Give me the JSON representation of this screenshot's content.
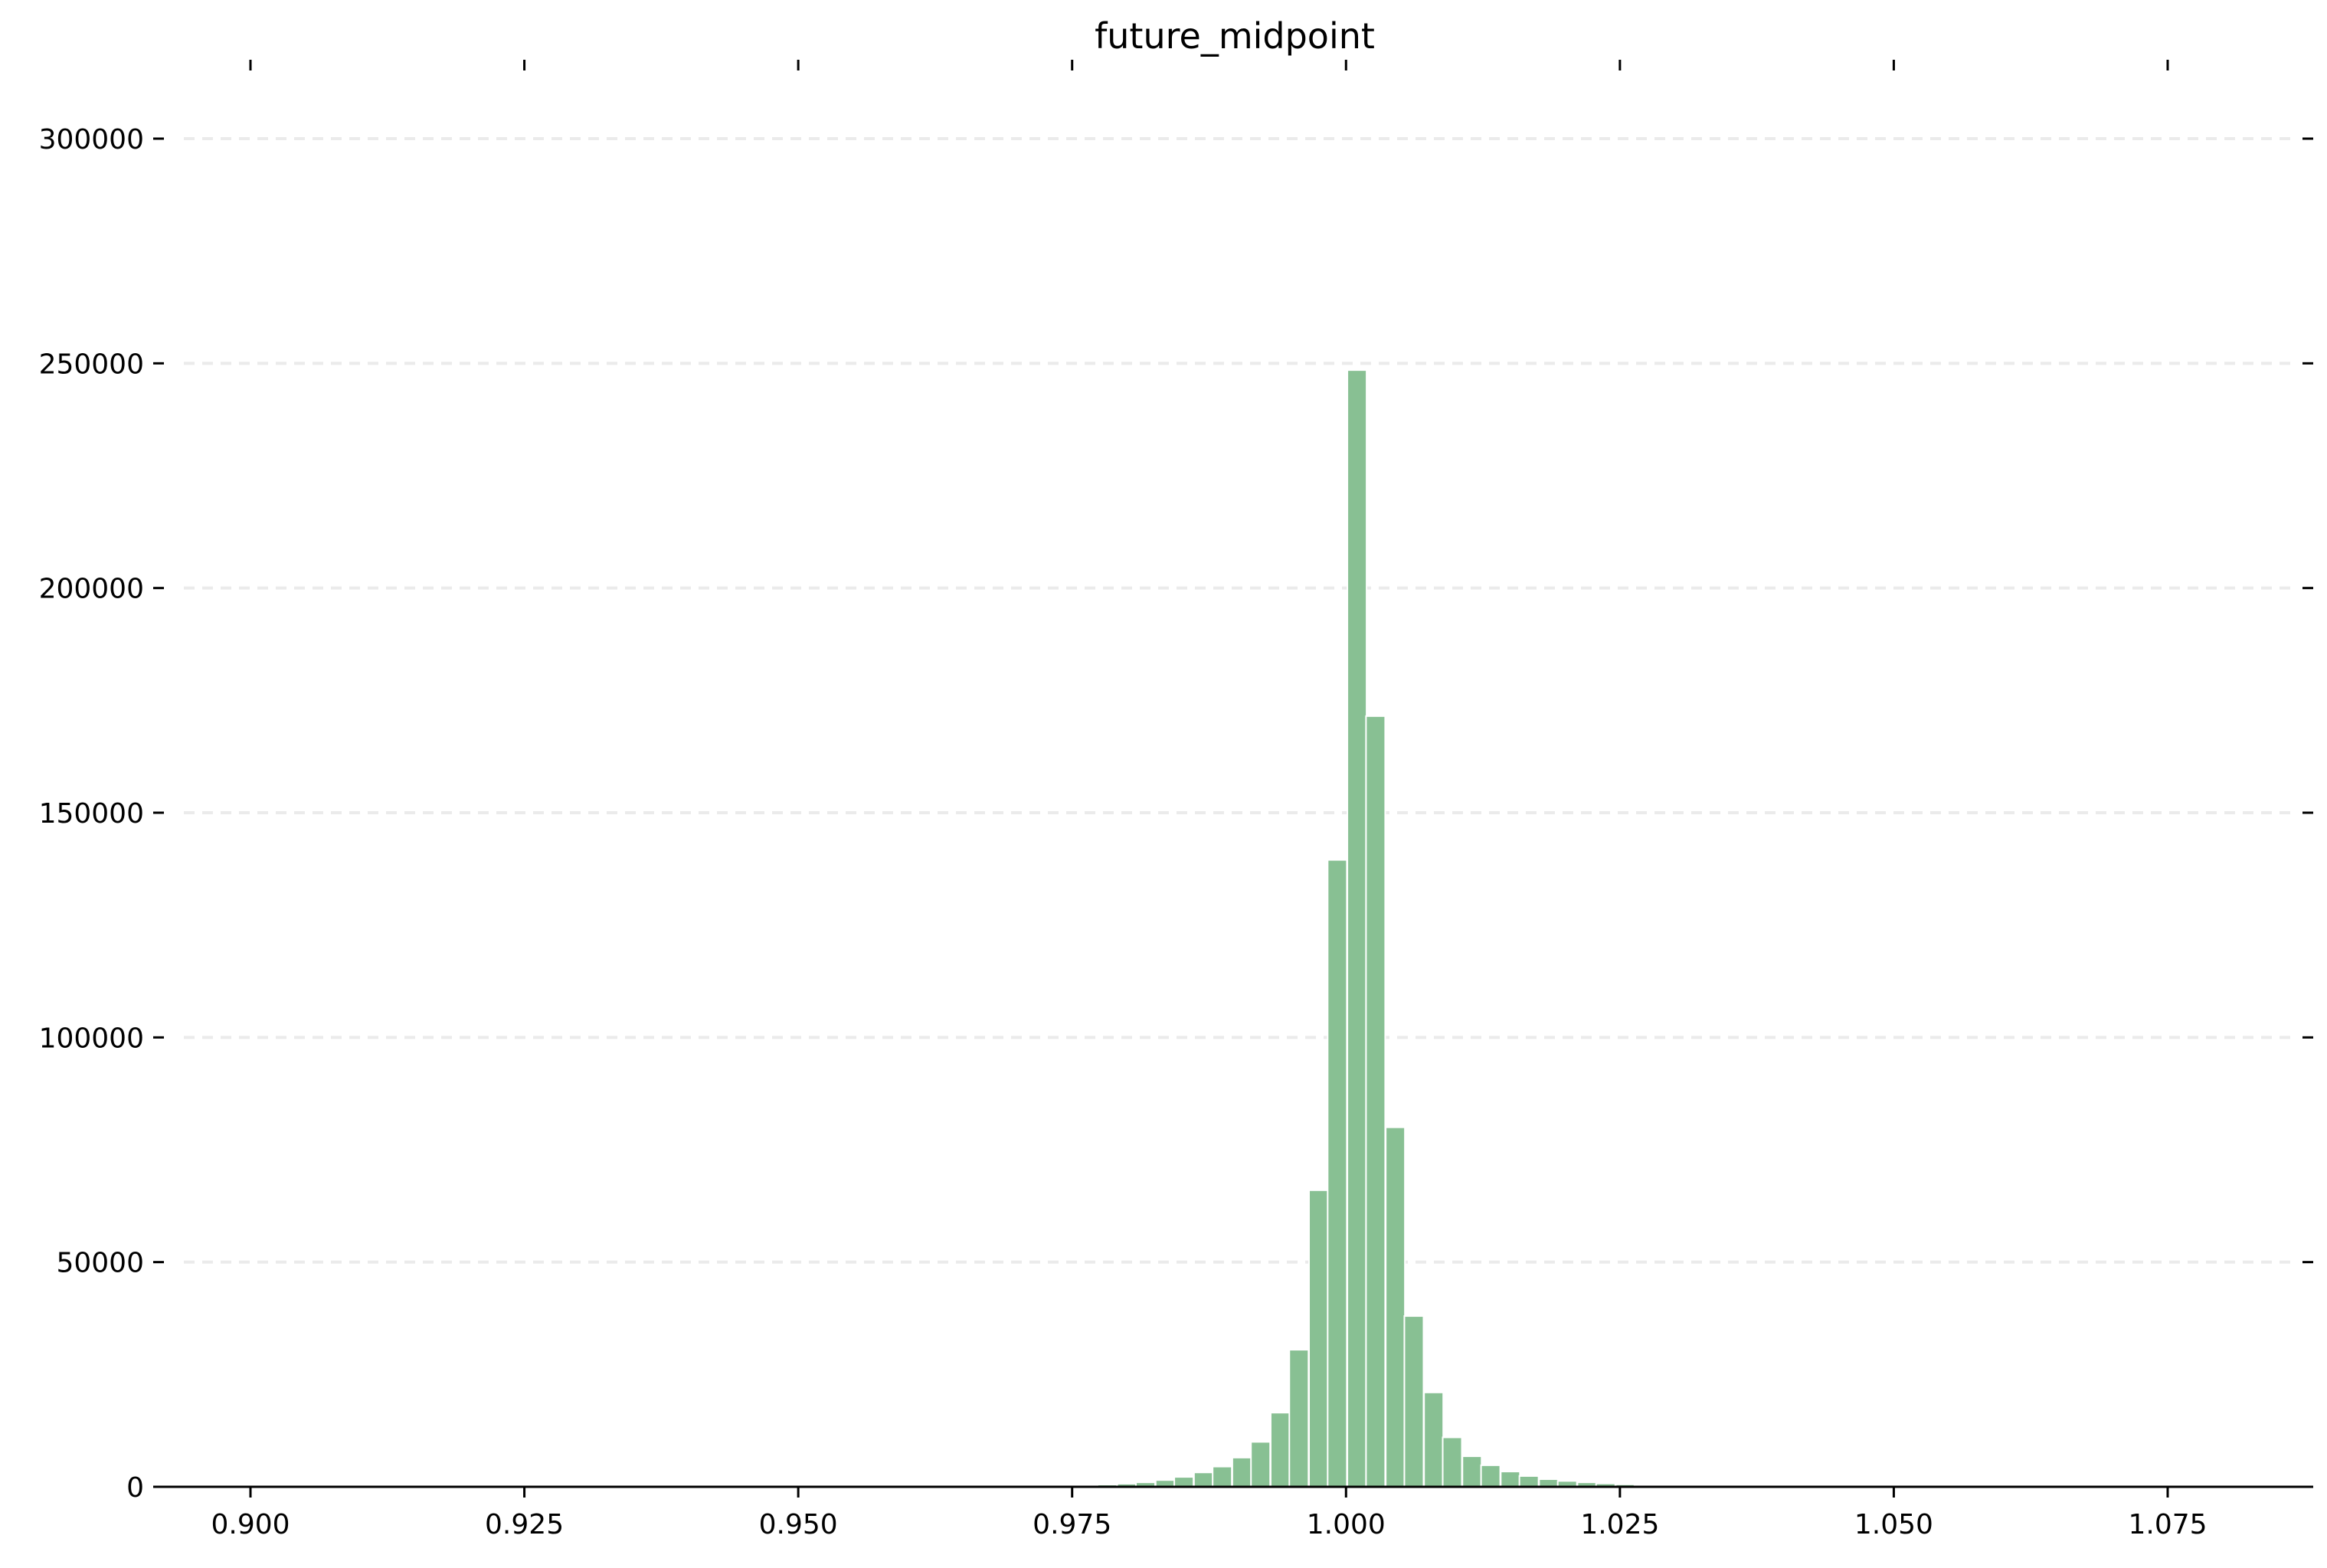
{
  "chart_data": {
    "type": "bar",
    "title": "future_midpoint",
    "xlabel": "",
    "ylabel": "",
    "xlim": [
      0.8913,
      1.0885
    ],
    "ylim": [
      0,
      300000
    ],
    "xticks": [
      "0.900",
      "0.925",
      "0.950",
      "0.975",
      "1.000",
      "1.025",
      "1.050",
      "1.075"
    ],
    "xtick_values": [
      0.9,
      0.925,
      0.95,
      0.975,
      1.0,
      1.025,
      1.05,
      1.075
    ],
    "yticks": [
      "0",
      "50000",
      "100000",
      "150000",
      "200000",
      "250000",
      "300000"
    ],
    "ytick_values": [
      0,
      50000,
      100000,
      150000,
      200000,
      250000,
      300000
    ],
    "grid": "horizontal dashed",
    "bar_color": "#88c093",
    "bin_width": 0.00175,
    "bins": [
      {
        "x": 0.9712,
        "value": 150
      },
      {
        "x": 0.973,
        "value": 200
      },
      {
        "x": 0.9747,
        "value": 250
      },
      {
        "x": 0.9765,
        "value": 350
      },
      {
        "x": 0.9782,
        "value": 500
      },
      {
        "x": 0.98,
        "value": 700
      },
      {
        "x": 0.9817,
        "value": 1000
      },
      {
        "x": 0.9835,
        "value": 1500
      },
      {
        "x": 0.9852,
        "value": 2200
      },
      {
        "x": 0.987,
        "value": 3200
      },
      {
        "x": 0.9887,
        "value": 4500
      },
      {
        "x": 0.9905,
        "value": 6500
      },
      {
        "x": 0.9922,
        "value": 10000
      },
      {
        "x": 0.994,
        "value": 16500
      },
      {
        "x": 0.9957,
        "value": 30500
      },
      {
        "x": 0.9975,
        "value": 66000
      },
      {
        "x": 0.9992,
        "value": 139500
      },
      {
        "x": 1.001,
        "value": 248500
      },
      {
        "x": 1.0027,
        "value": 171500
      },
      {
        "x": 1.0045,
        "value": 80000
      },
      {
        "x": 1.0062,
        "value": 38000
      },
      {
        "x": 1.008,
        "value": 21000
      },
      {
        "x": 1.0097,
        "value": 11000
      },
      {
        "x": 1.0115,
        "value": 6800
      },
      {
        "x": 1.0132,
        "value": 4800
      },
      {
        "x": 1.015,
        "value": 3400
      },
      {
        "x": 1.0167,
        "value": 2400
      },
      {
        "x": 1.0185,
        "value": 1700
      },
      {
        "x": 1.0202,
        "value": 1300
      },
      {
        "x": 1.022,
        "value": 1000
      },
      {
        "x": 1.0237,
        "value": 750
      },
      {
        "x": 1.0255,
        "value": 550
      },
      {
        "x": 1.0272,
        "value": 400
      },
      {
        "x": 1.029,
        "value": 300
      },
      {
        "x": 1.0307,
        "value": 250
      },
      {
        "x": 1.0325,
        "value": 200
      },
      {
        "x": 1.0342,
        "value": 150
      },
      {
        "x": 1.036,
        "value": 120
      },
      {
        "x": 1.0377,
        "value": 100
      }
    ]
  }
}
